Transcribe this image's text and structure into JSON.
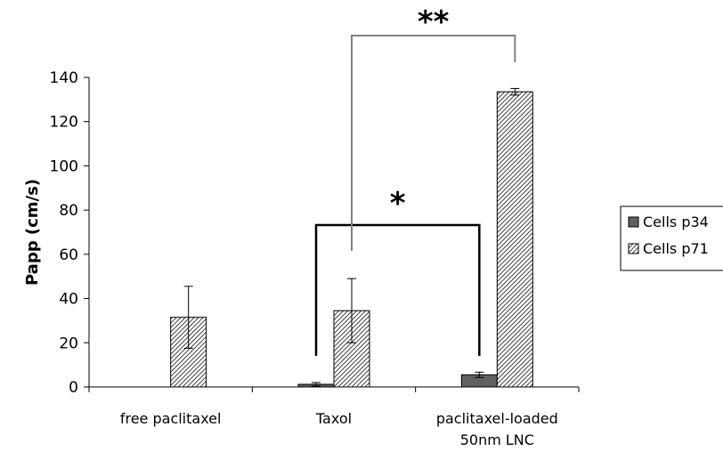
{
  "chart_data": {
    "type": "bar",
    "ylabel": "Papp (cm/s)",
    "xlabel": "",
    "ylim": [
      0,
      140
    ],
    "yticks": [
      0,
      20,
      40,
      60,
      80,
      100,
      120,
      140
    ],
    "categories": [
      "free paclitaxel",
      "Taxol",
      "paclitaxel-loaded 50nm LNC"
    ],
    "category_lines": [
      [
        "free paclitaxel"
      ],
      [
        "Taxol"
      ],
      [
        "paclitaxel-loaded",
        "50nm LNC"
      ]
    ],
    "series": [
      {
        "name": "Cells p34",
        "values": [
          null,
          1.2,
          5.5
        ],
        "errors": [
          null,
          0.8,
          1.2
        ],
        "color": "#606060",
        "pattern": "solid"
      },
      {
        "name": "Cells p71",
        "values": [
          31.5,
          34.5,
          133.5
        ],
        "errors": [
          14,
          14.5,
          1.5
        ],
        "color": "#ffffff",
        "pattern": "hatched"
      }
    ],
    "legend_position": "right",
    "annotations": [
      {
        "label": "*",
        "color": "#000000"
      },
      {
        "label": "**",
        "color": "#808080"
      }
    ],
    "grid": false
  }
}
